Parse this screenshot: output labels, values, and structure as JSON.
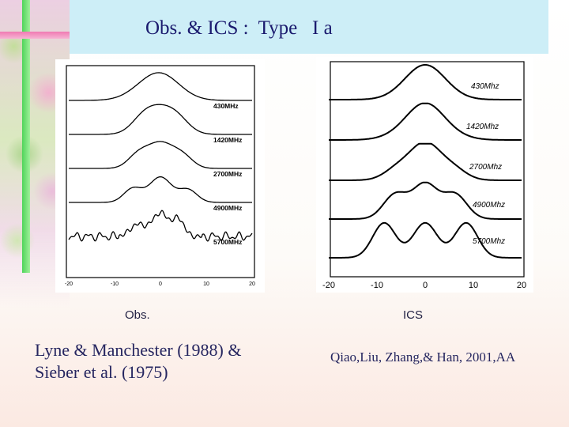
{
  "slide": {
    "title": "Obs. & ICS :  Type   I a"
  },
  "left_panel": {
    "caption": "Obs.",
    "reference_line1": "Lyne & Manchester (1988) &",
    "reference_line2": "Sieber et al. (1975)",
    "frequency_labels": [
      "430MHz",
      "1420MHz",
      "2700MHz",
      "4900MHz",
      "5700MHz"
    ],
    "x_ticks": [
      "-20",
      "-10",
      "0",
      "10",
      "20"
    ]
  },
  "right_panel": {
    "caption": "ICS",
    "reference": "Qiao,Liu, Zhang,& Han, 2001,AA",
    "frequency_labels": [
      "430Mhz",
      "1420Mhz",
      "2700Mhz",
      "4900Mhz",
      "5700Mhz"
    ],
    "x_ticks": [
      "-20",
      "-10",
      "0",
      "10",
      "20"
    ]
  },
  "colors": {
    "title_text": "#1a1a6e",
    "title_band": "#cdeef7",
    "deco_green": "#4fd45a",
    "deco_pink": "#f07ab3"
  }
}
